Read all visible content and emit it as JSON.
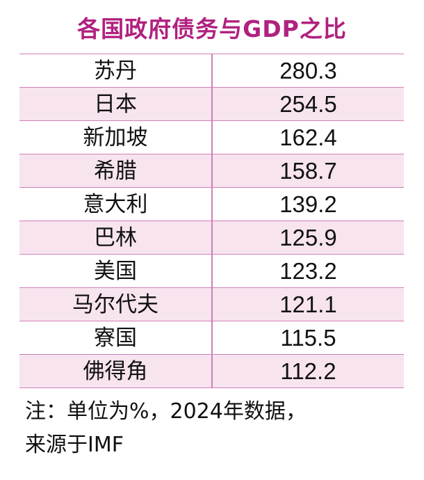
{
  "chart_data": {
    "type": "table",
    "title": "各国政府债务与GDP之比",
    "rows": [
      {
        "country": "苏丹",
        "value": "280.3"
      },
      {
        "country": "日本",
        "value": "254.5"
      },
      {
        "country": "新加坡",
        "value": "162.4"
      },
      {
        "country": "希腊",
        "value": "158.7"
      },
      {
        "country": "意大利",
        "value": "139.2"
      },
      {
        "country": "巴林",
        "value": "125.9"
      },
      {
        "country": "美国",
        "value": "123.2"
      },
      {
        "country": "马尔代夫",
        "value": "121.1"
      },
      {
        "country": "寮国",
        "value": "115.5"
      },
      {
        "country": "佛得角",
        "value": "112.2"
      }
    ],
    "note_line1": "注：单位为%，2024年数据，",
    "note_line2": "来源于IMF"
  },
  "colors": {
    "title": "#b0217f",
    "grid": "#cf7fb8",
    "shade": "#f7e4ef"
  }
}
